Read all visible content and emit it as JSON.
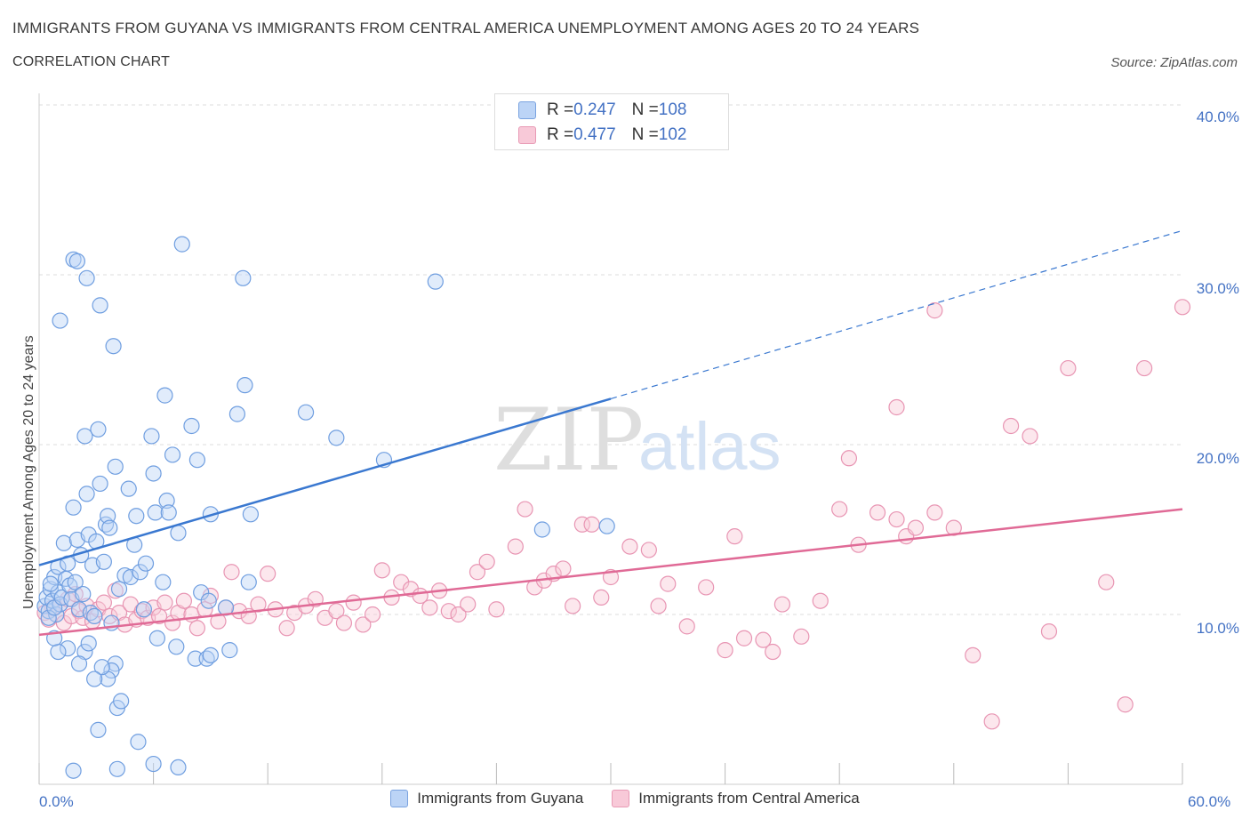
{
  "title": "IMMIGRANTS FROM GUYANA VS IMMIGRANTS FROM CENTRAL AMERICA UNEMPLOYMENT AMONG AGES 20 TO 24 YEARS",
  "subtitle": "CORRELATION CHART",
  "source": "Source: ZipAtlas.com",
  "watermark": {
    "zip": "ZIP",
    "atlas": "atlas"
  },
  "legend_top": {
    "rows": [
      {
        "r_label": "R = ",
        "r_value": "0.247",
        "n_label": "N = ",
        "n_value": "108"
      },
      {
        "r_label": "R = ",
        "r_value": "0.477",
        "n_label": "N = ",
        "n_value": "102"
      }
    ]
  },
  "colors": {
    "blue_fill": "#bcd4f6",
    "blue_stroke": "#6f9ee0",
    "blue_line": "#3a78d0",
    "pink_fill": "#f8c9d8",
    "pink_stroke": "#e895b3",
    "pink_line": "#e06a96",
    "tick_text": "#4472c4",
    "grid": "#dddddd"
  },
  "chart_data": {
    "type": "scatter",
    "title": "IMMIGRANTS FROM GUYANA VS IMMIGRANTS FROM CENTRAL AMERICA UNEMPLOYMENT AMONG AGES 20 TO 24 YEARS",
    "xlabel": "",
    "ylabel": "Unemployment Among Ages 20 to 24 years",
    "xlim": [
      0,
      60
    ],
    "ylim": [
      0,
      40
    ],
    "x_tick_labels": [
      "0.0%",
      "60.0%"
    ],
    "y_ticks": [
      10,
      20,
      30,
      40
    ],
    "y_tick_labels": [
      "10.0%",
      "20.0%",
      "30.0%",
      "40.0%"
    ],
    "grid": true,
    "legend_position": "bottom",
    "series": [
      {
        "name": "Immigrants from Guyana",
        "color": "#6f9ee0",
        "trend": {
          "x": [
            0,
            30
          ],
          "y": [
            12.9,
            22.7
          ],
          "dashed_to": [
            60,
            32.6
          ]
        },
        "points": [
          [
            0.3,
            10.5
          ],
          [
            0.4,
            11.0
          ],
          [
            0.5,
            10.2
          ],
          [
            0.6,
            11.5
          ],
          [
            0.7,
            10.8
          ],
          [
            0.8,
            12.2
          ],
          [
            0.9,
            10.0
          ],
          [
            1.0,
            11.3
          ],
          [
            1.1,
            10.6
          ],
          [
            0.5,
            9.8
          ],
          [
            0.6,
            11.8
          ],
          [
            0.8,
            10.4
          ],
          [
            1.0,
            12.8
          ],
          [
            1.2,
            11.0
          ],
          [
            1.3,
            14.2
          ],
          [
            1.4,
            12.1
          ],
          [
            1.5,
            13.0
          ],
          [
            1.6,
            11.7
          ],
          [
            1.7,
            10.9
          ],
          [
            1.8,
            16.3
          ],
          [
            1.9,
            11.9
          ],
          [
            2.0,
            14.4
          ],
          [
            2.1,
            10.3
          ],
          [
            2.2,
            13.5
          ],
          [
            2.3,
            11.2
          ],
          [
            2.4,
            20.5
          ],
          [
            2.5,
            17.1
          ],
          [
            2.6,
            14.7
          ],
          [
            2.7,
            10.1
          ],
          [
            2.8,
            12.9
          ],
          [
            2.9,
            9.9
          ],
          [
            3.0,
            14.3
          ],
          [
            3.1,
            20.9
          ],
          [
            3.2,
            17.7
          ],
          [
            3.4,
            13.1
          ],
          [
            3.5,
            15.3
          ],
          [
            3.6,
            15.8
          ],
          [
            3.7,
            15.1
          ],
          [
            3.8,
            9.5
          ],
          [
            4.0,
            18.7
          ],
          [
            4.2,
            11.5
          ],
          [
            4.5,
            12.3
          ],
          [
            4.7,
            17.4
          ],
          [
            4.8,
            12.2
          ],
          [
            5.0,
            14.1
          ],
          [
            5.1,
            15.8
          ],
          [
            5.3,
            12.5
          ],
          [
            5.5,
            10.3
          ],
          [
            5.6,
            13.0
          ],
          [
            5.9,
            20.5
          ],
          [
            6.0,
            18.3
          ],
          [
            6.1,
            16.0
          ],
          [
            6.5,
            11.9
          ],
          [
            6.6,
            22.9
          ],
          [
            6.7,
            16.7
          ],
          [
            6.8,
            16.0
          ],
          [
            7.0,
            19.4
          ],
          [
            7.3,
            14.8
          ],
          [
            7.5,
            31.8
          ],
          [
            8.0,
            21.1
          ],
          [
            8.3,
            19.1
          ],
          [
            8.5,
            11.3
          ],
          [
            8.9,
            10.8
          ],
          [
            9.0,
            15.9
          ],
          [
            9.8,
            10.4
          ],
          [
            10.0,
            7.9
          ],
          [
            10.4,
            21.8
          ],
          [
            10.7,
            29.8
          ],
          [
            10.8,
            23.5
          ],
          [
            11.0,
            11.9
          ],
          [
            11.1,
            15.9
          ],
          [
            7.2,
            8.1
          ],
          [
            6.2,
            8.6
          ],
          [
            4.0,
            7.1
          ],
          [
            3.8,
            6.7
          ],
          [
            3.6,
            6.2
          ],
          [
            3.3,
            6.9
          ],
          [
            2.4,
            7.8
          ],
          [
            2.6,
            8.3
          ],
          [
            2.9,
            6.2
          ],
          [
            2.1,
            7.1
          ],
          [
            1.5,
            8.0
          ],
          [
            1.0,
            7.8
          ],
          [
            0.8,
            8.6
          ],
          [
            1.1,
            27.3
          ],
          [
            1.8,
            30.9
          ],
          [
            2.0,
            30.8
          ],
          [
            2.5,
            29.8
          ],
          [
            3.2,
            28.2
          ],
          [
            3.9,
            25.8
          ],
          [
            4.1,
            4.5
          ],
          [
            4.3,
            4.9
          ],
          [
            3.1,
            3.2
          ],
          [
            5.2,
            2.5
          ],
          [
            6.0,
            1.2
          ],
          [
            7.3,
            1.0
          ],
          [
            4.1,
            0.9
          ],
          [
            1.8,
            0.8
          ],
          [
            8.2,
            7.4
          ],
          [
            8.8,
            7.4
          ],
          [
            9.0,
            7.6
          ],
          [
            14.0,
            21.9
          ],
          [
            15.6,
            20.4
          ],
          [
            18.1,
            19.1
          ],
          [
            20.8,
            29.6
          ],
          [
            26.4,
            15.0
          ],
          [
            29.8,
            15.2
          ]
        ]
      },
      {
        "name": "Immigrants from Central America",
        "color": "#e895b3",
        "trend": {
          "x": [
            0,
            60
          ],
          "y": [
            8.8,
            16.2
          ]
        },
        "points": [
          [
            0.3,
            10.1
          ],
          [
            0.5,
            9.7
          ],
          [
            0.7,
            10.4
          ],
          [
            0.9,
            10.0
          ],
          [
            1.1,
            10.6
          ],
          [
            1.3,
            9.5
          ],
          [
            1.5,
            10.9
          ],
          [
            1.7,
            9.9
          ],
          [
            1.9,
            11.2
          ],
          [
            2.1,
            10.2
          ],
          [
            2.3,
            9.8
          ],
          [
            2.5,
            10.5
          ],
          [
            2.8,
            9.6
          ],
          [
            3.1,
            10.3
          ],
          [
            3.4,
            10.7
          ],
          [
            3.7,
            9.9
          ],
          [
            4.0,
            11.4
          ],
          [
            4.2,
            10.1
          ],
          [
            4.5,
            9.4
          ],
          [
            4.8,
            10.6
          ],
          [
            5.1,
            9.7
          ],
          [
            5.4,
            10.2
          ],
          [
            5.7,
            9.8
          ],
          [
            6.0,
            10.4
          ],
          [
            6.3,
            9.9
          ],
          [
            6.6,
            10.7
          ],
          [
            7.0,
            9.5
          ],
          [
            7.3,
            10.1
          ],
          [
            7.6,
            10.8
          ],
          [
            8.0,
            10.0
          ],
          [
            8.3,
            9.2
          ],
          [
            8.7,
            10.3
          ],
          [
            9.0,
            11.1
          ],
          [
            9.4,
            9.6
          ],
          [
            9.8,
            10.4
          ],
          [
            10.1,
            12.5
          ],
          [
            10.5,
            10.2
          ],
          [
            11.0,
            9.9
          ],
          [
            11.5,
            10.6
          ],
          [
            12.0,
            12.4
          ],
          [
            12.4,
            10.3
          ],
          [
            13.0,
            9.2
          ],
          [
            13.4,
            10.1
          ],
          [
            14.0,
            10.5
          ],
          [
            14.5,
            10.9
          ],
          [
            15.0,
            9.8
          ],
          [
            15.6,
            10.2
          ],
          [
            16.0,
            9.5
          ],
          [
            16.5,
            10.7
          ],
          [
            17.0,
            9.4
          ],
          [
            17.5,
            10.0
          ],
          [
            18.0,
            12.6
          ],
          [
            18.5,
            11.0
          ],
          [
            19.0,
            11.9
          ],
          [
            19.5,
            11.5
          ],
          [
            20.0,
            11.1
          ],
          [
            20.5,
            10.4
          ],
          [
            21.0,
            11.4
          ],
          [
            21.5,
            10.2
          ],
          [
            22.0,
            10.0
          ],
          [
            22.5,
            10.6
          ],
          [
            23.0,
            12.5
          ],
          [
            23.5,
            13.1
          ],
          [
            24.0,
            10.3
          ],
          [
            25.0,
            14.0
          ],
          [
            25.5,
            16.2
          ],
          [
            26.0,
            11.6
          ],
          [
            26.5,
            12.0
          ],
          [
            27.0,
            12.4
          ],
          [
            27.5,
            12.7
          ],
          [
            28.0,
            10.5
          ],
          [
            28.5,
            15.3
          ],
          [
            29.0,
            15.3
          ],
          [
            29.5,
            11.0
          ],
          [
            30.0,
            12.2
          ],
          [
            31.0,
            14.0
          ],
          [
            32.0,
            13.8
          ],
          [
            32.5,
            10.5
          ],
          [
            33.0,
            11.8
          ],
          [
            34.0,
            9.3
          ],
          [
            35.0,
            11.6
          ],
          [
            36.0,
            7.9
          ],
          [
            36.5,
            14.6
          ],
          [
            37.0,
            8.6
          ],
          [
            38.0,
            8.5
          ],
          [
            38.5,
            7.8
          ],
          [
            39.0,
            10.6
          ],
          [
            40.0,
            8.7
          ],
          [
            41.0,
            10.8
          ],
          [
            42.0,
            16.2
          ],
          [
            42.5,
            19.2
          ],
          [
            43.0,
            14.1
          ],
          [
            44.0,
            16.0
          ],
          [
            45.0,
            15.6
          ],
          [
            45.5,
            14.6
          ],
          [
            46.0,
            15.1
          ],
          [
            47.0,
            16.0
          ],
          [
            48.0,
            15.1
          ],
          [
            49.0,
            7.6
          ],
          [
            50.0,
            3.7
          ],
          [
            51.0,
            21.1
          ],
          [
            52.0,
            20.5
          ],
          [
            53.0,
            9.0
          ],
          [
            54.0,
            24.5
          ],
          [
            56.0,
            11.9
          ],
          [
            57.0,
            4.7
          ],
          [
            58.0,
            24.5
          ],
          [
            60.0,
            28.1
          ],
          [
            45.0,
            22.2
          ],
          [
            47.0,
            27.9
          ]
        ]
      }
    ]
  },
  "ytick_labels": [
    "40.0%",
    "30.0%",
    "20.0%",
    "10.0%"
  ],
  "xtick_labels": [
    "0.0%",
    "60.0%"
  ]
}
